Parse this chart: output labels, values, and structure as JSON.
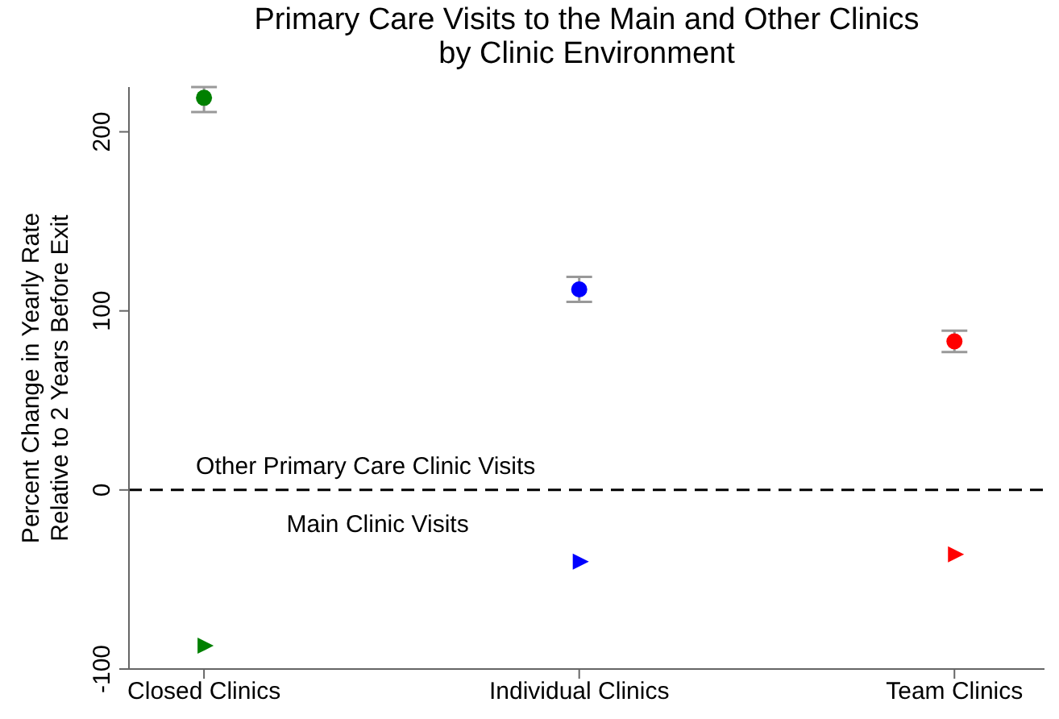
{
  "chart_data": {
    "type": "scatter",
    "title": "Primary Care Visits to the Main and Other Clinics\nby Clinic Environment",
    "ylabel": "Percent Change in Yearly Rate\nRelative to 2 Years Before Exit",
    "categories": [
      "Closed Clinics",
      "Individual Clinics",
      "Team Clinics"
    ],
    "series": [
      {
        "marker": "circle",
        "colors": [
          "#008000",
          "#0000ff",
          "#ff0000"
        ],
        "values": [
          219,
          112,
          83
        ],
        "errors": [
          [
            211,
            225
          ],
          [
            105,
            119
          ],
          [
            77,
            89
          ]
        ]
      },
      {
        "marker": "triangle",
        "colors": [
          "#008000",
          "#0000ff",
          "#ff0000"
        ],
        "values": [
          -87,
          -40,
          -36
        ]
      }
    ],
    "ylim": [
      -100,
      225
    ],
    "yticks": [
      -100,
      0,
      100,
      200
    ],
    "grid": false,
    "legend": false,
    "ref_lines": [
      {
        "axis": "y",
        "value": 0,
        "line_style": "dashed",
        "color": "#000000"
      }
    ],
    "annotations": [
      "Other Primary Care Clinic Visits",
      "Main Clinic Visits"
    ]
  }
}
